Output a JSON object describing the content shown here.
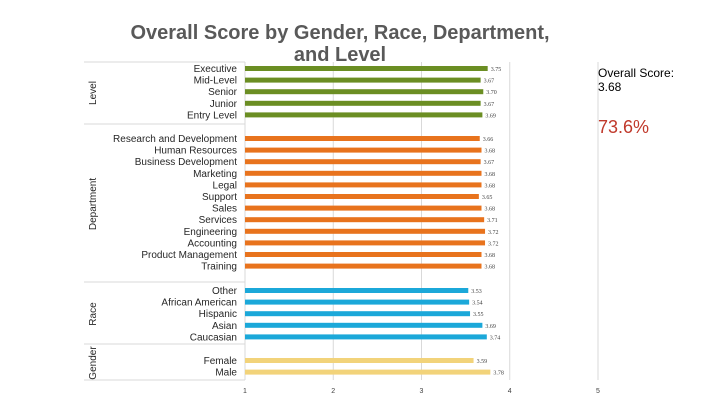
{
  "chart_data": {
    "type": "bar",
    "orientation": "horizontal",
    "title": "Overall Score by Gender, Race, Department, and Level",
    "xlim": [
      1,
      5
    ],
    "x_ticks": [
      "1",
      "2",
      "3",
      "4",
      "5"
    ],
    "grid": true,
    "groups": [
      {
        "name": "Level",
        "color": "#6b8e23",
        "categories": [
          "Executive",
          "Mid-Level",
          "Senior",
          "Junior",
          "Entry Level"
        ],
        "values": [
          3.75,
          3.67,
          3.7,
          3.67,
          3.69
        ],
        "value_labels": [
          "3.75",
          "3.67",
          "3.70",
          "3.67",
          "3.69"
        ]
      },
      {
        "name": "Department",
        "color": "#e8731d",
        "categories": [
          "Research and Development",
          "Human Resources",
          "Business Development",
          "Marketing",
          "Legal",
          "Support",
          "Sales",
          "Services",
          "Engineering",
          "Accounting",
          "Product Management",
          "Training"
        ],
        "values": [
          3.66,
          3.68,
          3.67,
          3.68,
          3.68,
          3.65,
          3.68,
          3.71,
          3.72,
          3.72,
          3.68,
          3.68
        ],
        "value_labels": [
          "3.66",
          "3.68",
          "3.67",
          "3.68",
          "3.68",
          "3.65",
          "3.68",
          "3.71",
          "3.72",
          "3.72",
          "3.68",
          "3.68"
        ]
      },
      {
        "name": "Race",
        "color": "#1ba8d9",
        "categories": [
          "Other",
          "African American",
          "Hispanic",
          "Asian",
          "Caucasian"
        ],
        "values": [
          3.53,
          3.54,
          3.55,
          3.69,
          3.74
        ],
        "value_labels": [
          "3.53",
          "3.54",
          "3.55",
          "3.69",
          "3.74"
        ]
      },
      {
        "name": "Gender",
        "color": "#f2d37a",
        "categories": [
          "Female",
          "Male"
        ],
        "values": [
          3.59,
          3.78
        ],
        "value_labels": [
          "3.59",
          "3.78"
        ]
      }
    ]
  },
  "summary": {
    "overall_label": "Overall Score:",
    "overall_value": "3.68",
    "percentage": "73.6%"
  }
}
